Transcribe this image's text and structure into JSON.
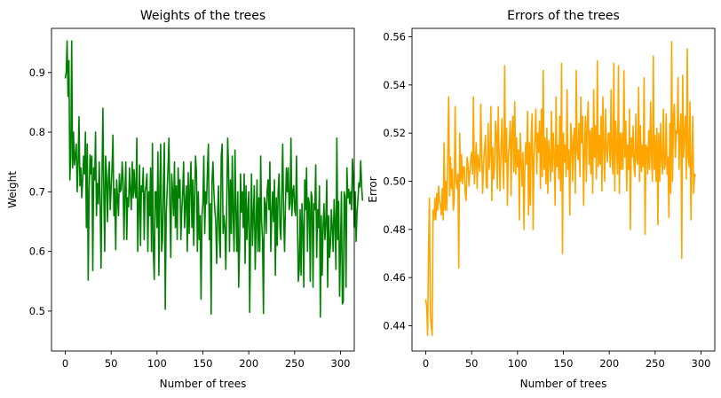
{
  "chart_data": [
    {
      "type": "line",
      "title": "Weights of the trees",
      "xlabel": "Number of trees",
      "ylabel": "Weight",
      "xlim": [
        -15,
        315
      ],
      "ylim": [
        0.433,
        0.974
      ],
      "xticks": [
        0,
        50,
        100,
        150,
        200,
        250,
        300
      ],
      "yticks": [
        0.5,
        0.6,
        0.7,
        0.8,
        0.9
      ],
      "ytick_labels": [
        "0.5",
        "0.6",
        "0.7",
        "0.8",
        "0.9"
      ],
      "grid": false,
      "color": "#008000",
      "x_start": 0,
      "x_step": 1,
      "series": [
        {
          "values": [
            0.89,
            0.9,
            0.953,
            0.86,
            0.92,
            0.72,
            0.76,
            0.953,
            0.74,
            0.8,
            0.745,
            0.76,
            0.78,
            0.7,
            0.75,
            0.826,
            0.71,
            0.74,
            0.69,
            0.72,
            0.76,
            0.73,
            0.8,
            0.64,
            0.78,
            0.552,
            0.7,
            0.762,
            0.73,
            0.76,
            0.568,
            0.74,
            0.72,
            0.8,
            0.66,
            0.714,
            0.68,
            0.75,
            0.68,
            0.572,
            0.72,
            0.84,
            0.7,
            0.6,
            0.76,
            0.73,
            0.65,
            0.72,
            0.75,
            0.67,
            0.706,
            0.74,
            0.795,
            0.66,
            0.705,
            0.603,
            0.72,
            0.69,
            0.66,
            0.73,
            0.7,
            0.704,
            0.75,
            0.72,
            0.62,
            0.7,
            0.75,
            0.62,
            0.69,
            0.675,
            0.74,
            0.7,
            0.67,
            0.75,
            0.69,
            0.737,
            0.7,
            0.69,
            0.79,
            0.6,
            0.67,
            0.745,
            0.61,
            0.71,
            0.7,
            0.74,
            0.62,
            0.7,
            0.71,
            0.73,
            0.6,
            0.7,
            0.66,
            0.74,
            0.6,
            0.781,
            0.6,
            0.553,
            0.7,
            0.7,
            0.64,
            0.767,
            0.56,
            0.7,
            0.78,
            0.6,
            0.62,
            0.72,
            0.782,
            0.503,
            0.66,
            0.7,
            0.74,
            0.79,
            0.68,
            0.59,
            0.73,
            0.7,
            0.66,
            0.75,
            0.64,
            0.71,
            0.62,
            0.74,
            0.69,
            0.72,
            0.62,
            0.67,
            0.7,
            0.75,
            0.64,
            0.68,
            0.71,
            0.6,
            0.732,
            0.63,
            0.71,
            0.75,
            0.64,
            0.72,
            0.61,
            0.69,
            0.76,
            0.733,
            0.6,
            0.7,
            0.62,
            0.66,
            0.52,
            0.66,
            0.68,
            0.76,
            0.63,
            0.7,
            0.68,
            0.74,
            0.78,
            0.62,
            0.68,
            0.495,
            0.72,
            0.75,
            0.7,
            0.67,
            0.65,
            0.58,
            0.66,
            0.71,
            0.62,
            0.59,
            0.76,
            0.78,
            0.63,
            0.66,
            0.64,
            0.57,
            0.68,
            0.79,
            0.74,
            0.6,
            0.72,
            0.63,
            0.76,
            0.66,
            0.6,
            0.77,
            0.67,
            0.6,
            0.7,
            0.54,
            0.61,
            0.73,
            0.666,
            0.7,
            0.64,
            0.73,
            0.58,
            0.71,
            0.62,
            0.668,
            0.7,
            0.498,
            0.63,
            0.73,
            0.61,
            0.66,
            0.71,
            0.57,
            0.64,
            0.72,
            0.6,
            0.69,
            0.6,
            0.76,
            0.65,
            0.62,
            0.496,
            0.69,
            0.68,
            0.63,
            0.7,
            0.72,
            0.67,
            0.75,
            0.6,
            0.66,
            0.7,
            0.65,
            0.72,
            0.56,
            0.69,
            0.61,
            0.7,
            0.73,
            0.64,
            0.62,
            0.7,
            0.78,
            0.66,
            0.6,
            0.68,
            0.74,
            0.7,
            0.74,
            0.67,
            0.68,
            0.79,
            0.66,
            0.7,
            0.71,
            0.67,
            0.66,
            0.76,
            0.66,
            0.55,
            0.57,
            0.67,
            0.56,
            0.68,
            0.64,
            0.54,
            0.72,
            0.67,
            0.74,
            0.6,
            0.69,
            0.68,
            0.55,
            0.7,
            0.69,
            0.54,
            0.68,
            0.67,
            0.745,
            0.59,
            0.67,
            0.64,
            0.71,
            0.49,
            0.66,
            0.56,
            0.64,
            0.68,
            0.62,
            0.65,
            0.72,
            0.54,
            0.66,
            0.59,
            0.61,
            0.67,
            0.64,
            0.6,
            0.687,
            0.65,
            0.57,
            0.79,
            0.62,
            0.684,
            0.525,
            0.61,
            0.7,
            0.512,
            0.515,
            0.7,
            0.69,
            0.54,
            0.74,
            0.69,
            0.704,
            0.68,
            0.7,
            0.67,
            0.755,
            0.72,
            0.64,
            0.7,
            0.617,
            0.665,
            0.687,
            0.715,
            0.708,
            0.752,
            0.709,
            0.685
          ]
        }
      ]
    },
    {
      "type": "line",
      "title": "Errors of the trees",
      "xlabel": "Number of trees",
      "ylabel": "Error",
      "xlim": [
        -15,
        315
      ],
      "ylim": [
        0.4295,
        0.5635
      ],
      "xticks": [
        0,
        50,
        100,
        150,
        200,
        250,
        300
      ],
      "yticks": [
        0.44,
        0.46,
        0.48,
        0.5,
        0.52,
        0.54,
        0.56
      ],
      "ytick_labels": [
        "0.44",
        "0.46",
        "0.48",
        "0.50",
        "0.52",
        "0.54",
        "0.56"
      ],
      "grid": false,
      "color": "#FFA500",
      "x_start": 0,
      "x_step": 1,
      "series": [
        {
          "values": [
            0.451,
            0.448,
            0.436,
            0.47,
            0.493,
            0.445,
            0.44,
            0.436,
            0.488,
            0.484,
            0.493,
            0.484,
            0.495,
            0.488,
            0.498,
            0.492,
            0.49,
            0.486,
            0.497,
            0.484,
            0.516,
            0.488,
            0.5,
            0.488,
            0.513,
            0.535,
            0.494,
            0.51,
            0.497,
            0.505,
            0.488,
            0.492,
            0.531,
            0.5,
            0.497,
            0.503,
            0.464,
            0.52,
            0.5,
            0.511,
            0.499,
            0.506,
            0.506,
            0.495,
            0.492,
            0.51,
            0.507,
            0.498,
            0.504,
            0.509,
            0.512,
            0.503,
            0.535,
            0.499,
            0.508,
            0.516,
            0.497,
            0.511,
            0.507,
            0.504,
            0.532,
            0.511,
            0.495,
            0.508,
            0.513,
            0.519,
            0.498,
            0.497,
            0.524,
            0.505,
            0.512,
            0.531,
            0.492,
            0.514,
            0.501,
            0.506,
            0.525,
            0.52,
            0.497,
            0.531,
            0.51,
            0.496,
            0.513,
            0.526,
            0.508,
            0.497,
            0.548,
            0.508,
            0.522,
            0.49,
            0.511,
            0.515,
            0.525,
            0.494,
            0.52,
            0.527,
            0.504,
            0.533,
            0.503,
            0.518,
            0.506,
            0.513,
            0.484,
            0.52,
            0.509,
            0.498,
            0.512,
            0.48,
            0.505,
            0.516,
            0.507,
            0.529,
            0.486,
            0.516,
            0.49,
            0.52,
            0.528,
            0.48,
            0.51,
            0.518,
            0.53,
            0.503,
            0.52,
            0.512,
            0.525,
            0.497,
            0.53,
            0.502,
            0.546,
            0.505,
            0.518,
            0.499,
            0.522,
            0.495,
            0.517,
            0.51,
            0.5,
            0.529,
            0.504,
            0.52,
            0.511,
            0.49,
            0.535,
            0.506,
            0.515,
            0.501,
            0.527,
            0.496,
            0.549,
            0.47,
            0.52,
            0.508,
            0.515,
            0.502,
            0.538,
            0.505,
            0.513,
            0.486,
            0.524,
            0.518,
            0.5,
            0.518,
            0.522,
            0.495,
            0.546,
            0.512,
            0.509,
            0.524,
            0.502,
            0.535,
            0.516,
            0.527,
            0.49,
            0.513,
            0.527,
            0.5,
            0.524,
            0.533,
            0.507,
            0.521,
            0.503,
            0.522,
            0.495,
            0.538,
            0.51,
            0.523,
            0.501,
            0.55,
            0.506,
            0.519,
            0.507,
            0.527,
            0.496,
            0.535,
            0.514,
            0.5,
            0.53,
            0.513,
            0.508,
            0.52,
            0.52,
            0.506,
            0.538,
            0.51,
            0.503,
            0.549,
            0.496,
            0.525,
            0.514,
            0.503,
            0.548,
            0.495,
            0.52,
            0.505,
            0.52,
            0.505,
            0.546,
            0.51,
            0.525,
            0.496,
            0.515,
            0.505,
            0.53,
            0.48,
            0.518,
            0.51,
            0.523,
            0.506,
            0.502,
            0.528,
            0.509,
            0.507,
            0.539,
            0.5,
            0.523,
            0.504,
            0.515,
            0.506,
            0.543,
            0.478,
            0.515,
            0.514,
            0.503,
            0.521,
            0.505,
            0.533,
            0.51,
            0.5,
            0.552,
            0.505,
            0.519,
            0.5,
            0.522,
            0.482,
            0.52,
            0.5,
            0.524,
            0.509,
            0.503,
            0.53,
            0.505,
            0.507,
            0.528,
            0.503,
            0.51,
            0.485,
            0.524,
            0.495,
            0.558,
            0.5,
            0.527,
            0.532,
            0.51,
            0.521,
            0.52,
            0.543,
            0.505,
            0.519,
            0.528,
            0.468,
            0.544,
            0.51,
            0.52,
            0.527,
            0.501,
            0.555,
            0.51,
            0.506,
            0.533,
            0.484,
            0.507,
            0.527,
            0.495,
            0.503,
            0.502
          ]
        }
      ]
    }
  ]
}
